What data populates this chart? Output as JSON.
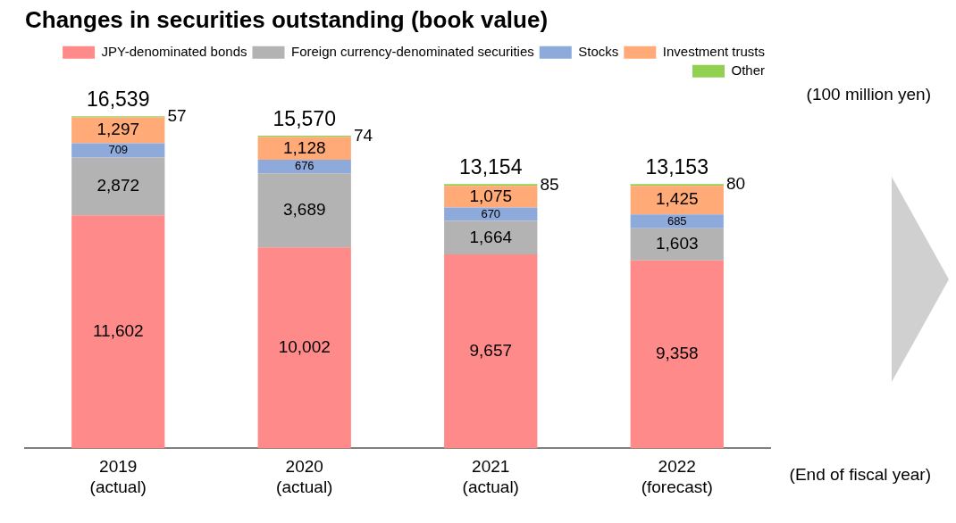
{
  "chart_data": {
    "type": "bar",
    "stacked": true,
    "title": "Changes in securities outstanding (book value)",
    "categories": [
      "2019\n(actual)",
      "2020\n(actual)",
      "2021\n(actual)",
      "2022\n(forecast)"
    ],
    "series": [
      {
        "name": "JPY-denominated bonds",
        "color": "#ff8a8a",
        "values": [
          11602,
          10002,
          9657,
          9358
        ],
        "value_labels": [
          "11,602",
          "10,002",
          "9,657",
          "9,358"
        ]
      },
      {
        "name": "Foreign currency-denominated securities",
        "color": "#b3b3b3",
        "values": [
          2872,
          3689,
          1664,
          1603
        ],
        "value_labels": [
          "2,872",
          "3,689",
          "1,664",
          "1,603"
        ]
      },
      {
        "name": "Stocks",
        "color": "#8eaadb",
        "values": [
          709,
          676,
          670,
          685
        ],
        "value_labels": [
          "709",
          "676",
          "670",
          "685"
        ]
      },
      {
        "name": "Investment trusts",
        "color": "#ffaa77",
        "values": [
          1297,
          1128,
          1075,
          1425
        ],
        "value_labels": [
          "1,297",
          "1,128",
          "1,075",
          "1,425"
        ]
      },
      {
        "name": "Other",
        "color": "#92d050",
        "values": [
          57,
          74,
          85,
          80
        ],
        "value_labels": [
          "57",
          "74",
          "85",
          "80"
        ]
      }
    ],
    "totals": [
      "16,539",
      "15,570",
      "13,154",
      "13,153"
    ],
    "legend": "top right",
    "grid": false,
    "annotations": [
      "(100 million yen)",
      "(End of fiscal year)"
    ]
  }
}
